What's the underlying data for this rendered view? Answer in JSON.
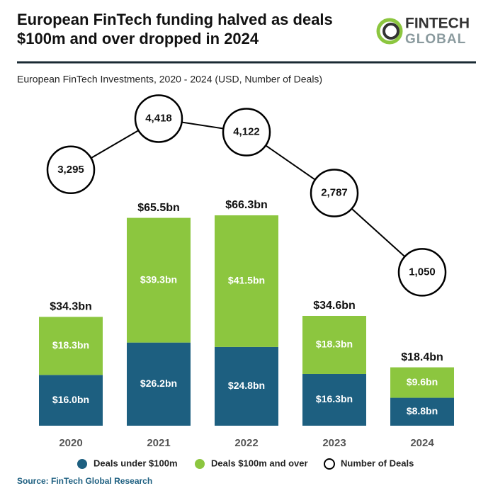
{
  "chart_data": {
    "type": "stacked_bar_line",
    "title": "European FinTech funding halved as deals $100m and over dropped in 2024",
    "subtitle": "European FinTech Investments, 2020 - 2024 (USD, Number of Deals)",
    "source": "Source: FinTech Global Research",
    "logo": [
      "FINTECH",
      "GLOBAL"
    ],
    "categories": [
      "2020",
      "2021",
      "2022",
      "2023",
      "2024"
    ],
    "ylim": [
      0,
      100
    ],
    "y2lim": [
      0,
      5000
    ],
    "series": [
      {
        "name": "Deals under $100m",
        "color": "#1d5f80",
        "values": [
          16.0,
          26.2,
          24.8,
          16.3,
          8.8
        ],
        "value_labels": [
          "$16.0bn",
          "$26.2bn",
          "$24.8bn",
          "$16.3bn",
          "$8.8bn"
        ]
      },
      {
        "name": "Deals $100m and over",
        "color": "#8cc63f",
        "values": [
          18.3,
          39.3,
          41.5,
          18.3,
          9.6
        ],
        "value_labels": [
          "$18.3bn",
          "$39.3bn",
          "$41.5bn",
          "$18.3bn",
          "$9.6bn"
        ]
      },
      {
        "name": "Number of Deals",
        "color": "#000000",
        "axis": "y2",
        "values": [
          3295,
          4418,
          4122,
          2787,
          1050
        ],
        "value_labels": [
          "3,295",
          "4,418",
          "4,122",
          "2,787",
          "1,050"
        ]
      }
    ],
    "totals": {
      "values": [
        34.3,
        65.5,
        66.3,
        34.6,
        18.4
      ],
      "value_labels": [
        "$34.3bn",
        "$65.5bn",
        "$66.3bn",
        "$34.6bn",
        "$18.4bn"
      ]
    }
  }
}
